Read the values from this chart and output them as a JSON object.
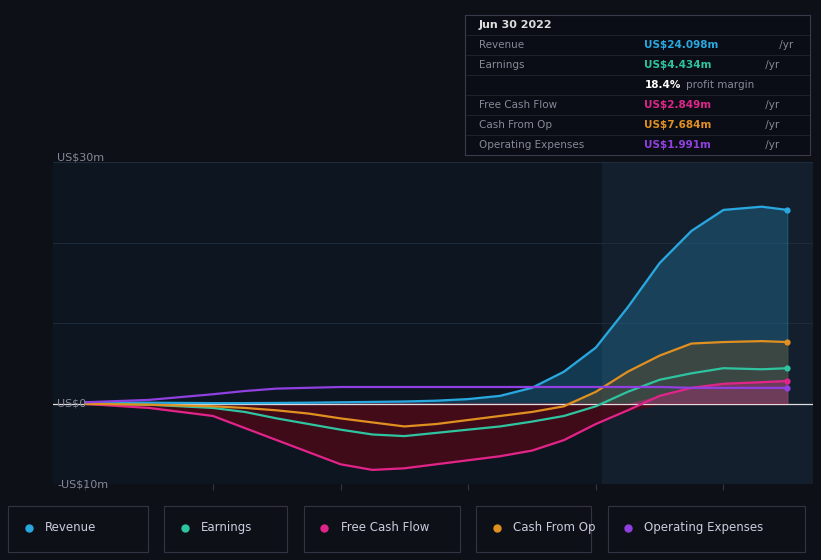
{
  "bg_color": "#0d1117",
  "plot_bg": "#0c1520",
  "highlight_bg": "#141f2e",
  "grid_color": "#1e2d3d",
  "zero_line_color": "#dddddd",
  "x": [
    2017.0,
    2017.5,
    2018.0,
    2018.25,
    2018.5,
    2018.75,
    2019.0,
    2019.25,
    2019.5,
    2019.75,
    2020.0,
    2020.25,
    2020.5,
    2020.75,
    2021.0,
    2021.25,
    2021.5,
    2021.75,
    2022.0,
    2022.3,
    2022.5
  ],
  "revenue": [
    0.2,
    0.15,
    0.1,
    0.1,
    0.12,
    0.15,
    0.2,
    0.25,
    0.3,
    0.4,
    0.6,
    1.0,
    2.0,
    4.0,
    7.0,
    12.0,
    17.5,
    21.5,
    24.098,
    24.5,
    24.098
  ],
  "earnings": [
    0.1,
    -0.1,
    -0.5,
    -1.0,
    -1.8,
    -2.5,
    -3.2,
    -3.8,
    -4.0,
    -3.6,
    -3.2,
    -2.8,
    -2.2,
    -1.5,
    -0.3,
    1.5,
    3.0,
    3.8,
    4.434,
    4.3,
    4.434
  ],
  "fcf": [
    0.0,
    -0.5,
    -1.5,
    -3.0,
    -4.5,
    -6.0,
    -7.5,
    -8.2,
    -8.0,
    -7.5,
    -7.0,
    -6.5,
    -5.8,
    -4.5,
    -2.5,
    -0.8,
    1.0,
    2.0,
    2.5,
    2.7,
    2.849
  ],
  "cashop": [
    0.0,
    -0.1,
    -0.3,
    -0.5,
    -0.8,
    -1.2,
    -1.8,
    -2.3,
    -2.8,
    -2.5,
    -2.0,
    -1.5,
    -1.0,
    -0.3,
    1.5,
    4.0,
    6.0,
    7.5,
    7.684,
    7.8,
    7.684
  ],
  "opex": [
    0.2,
    0.5,
    1.2,
    1.6,
    1.9,
    2.0,
    2.1,
    2.1,
    2.1,
    2.1,
    2.1,
    2.1,
    2.1,
    2.1,
    2.1,
    2.1,
    2.1,
    2.0,
    1.991,
    1.991,
    1.991
  ],
  "revenue_color": "#29a8e0",
  "earnings_color": "#2ec4a0",
  "fcf_color": "#e0258a",
  "cashop_color": "#e09020",
  "opex_color": "#9040e0",
  "ylim": [
    -10,
    30
  ],
  "ytick_vals": [
    -10,
    0,
    10,
    20,
    30
  ],
  "ytick_labels_show": [
    "-US$10m",
    "US$0",
    "US$30m"
  ],
  "ytick_show_vals": [
    -10,
    0,
    30
  ],
  "xtick_vals": [
    2017,
    2018,
    2019,
    2020,
    2021,
    2022
  ],
  "xlim": [
    2016.75,
    2022.7
  ],
  "highlight_start": 2021.05,
  "highlight_end": 2022.7,
  "info_date": "Jun 30 2022",
  "info_rows": [
    {
      "label": "Revenue",
      "value": "US$24.098m",
      "suffix": " /yr",
      "color": "#29a8e0",
      "is_header": false
    },
    {
      "label": "Earnings",
      "value": "US$4.434m",
      "suffix": " /yr",
      "color": "#2ec4a0",
      "is_header": false
    },
    {
      "label": "",
      "value": "18.4%",
      "suffix": " profit margin",
      "color": "#ffffff",
      "is_header": false
    },
    {
      "label": "Free Cash Flow",
      "value": "US$2.849m",
      "suffix": " /yr",
      "color": "#e0258a",
      "is_header": false
    },
    {
      "label": "Cash From Op",
      "value": "US$7.684m",
      "suffix": " /yr",
      "color": "#e09020",
      "is_header": false
    },
    {
      "label": "Operating Expenses",
      "value": "US$1.991m",
      "suffix": " /yr",
      "color": "#9040e0",
      "is_header": false
    }
  ],
  "legend_items": [
    {
      "label": "Revenue",
      "color": "#29a8e0"
    },
    {
      "label": "Earnings",
      "color": "#2ec4a0"
    },
    {
      "label": "Free Cash Flow",
      "color": "#e0258a"
    },
    {
      "label": "Cash From Op",
      "color": "#e09020"
    },
    {
      "label": "Operating Expenses",
      "color": "#9040e0"
    }
  ]
}
